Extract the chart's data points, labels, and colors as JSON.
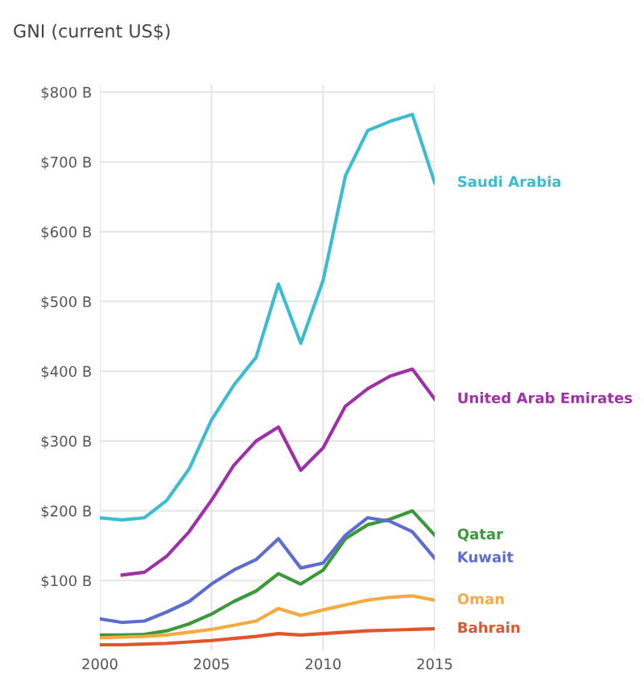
{
  "chart_data": {
    "type": "line",
    "title": "GNI (current US$)",
    "x": [
      2000,
      2001,
      2002,
      2003,
      2004,
      2005,
      2006,
      2007,
      2008,
      2009,
      2010,
      2011,
      2012,
      2013,
      2014,
      2015
    ],
    "series": [
      {
        "name": "Saudi Arabia",
        "color": "#3bbcd0",
        "values": [
          190,
          187,
          190,
          215,
          260,
          330,
          380,
          420,
          525,
          440,
          530,
          680,
          745,
          758,
          768,
          670
        ]
      },
      {
        "name": "United Arab Emirates",
        "color": "#a030a8",
        "values": [
          null,
          108,
          112,
          135,
          170,
          215,
          265,
          300,
          320,
          258,
          290,
          350,
          375,
          393,
          403,
          360
        ]
      },
      {
        "name": "Qatar",
        "color": "#3a9a3a",
        "values": [
          22,
          22,
          23,
          28,
          38,
          52,
          70,
          85,
          110,
          95,
          115,
          160,
          180,
          188,
          200,
          165
        ]
      },
      {
        "name": "Kuwait",
        "color": "#5c6cd0",
        "values": [
          45,
          40,
          42,
          55,
          70,
          95,
          115,
          130,
          160,
          118,
          125,
          165,
          190,
          185,
          170,
          132
        ]
      },
      {
        "name": "Oman",
        "color": "#f5a940",
        "values": [
          18,
          19,
          20,
          22,
          26,
          30,
          36,
          42,
          60,
          50,
          58,
          65,
          72,
          76,
          78,
          72
        ]
      },
      {
        "name": "Bahrain",
        "color": "#e0552c",
        "values": [
          8,
          8,
          9,
          10,
          12,
          14,
          17,
          20,
          24,
          22,
          24,
          26,
          28,
          29,
          30,
          31
        ]
      }
    ],
    "xlim": [
      2000,
      2015
    ],
    "xticks": [
      2000,
      2005,
      2010,
      2015
    ],
    "ylim": [
      0,
      810
    ],
    "yticks": [
      {
        "value": 100,
        "label": "$100 B"
      },
      {
        "value": 200,
        "label": "$200 B"
      },
      {
        "value": 300,
        "label": "$300 B"
      },
      {
        "value": 400,
        "label": "$400 B"
      },
      {
        "value": 500,
        "label": "$500 B"
      },
      {
        "value": 600,
        "label": "$600 B"
      },
      {
        "value": 700,
        "label": "$700 B"
      },
      {
        "value": 800,
        "label": "$800 B"
      }
    ],
    "grid": true,
    "legend": false,
    "marker": "none",
    "line_style": "solid"
  }
}
